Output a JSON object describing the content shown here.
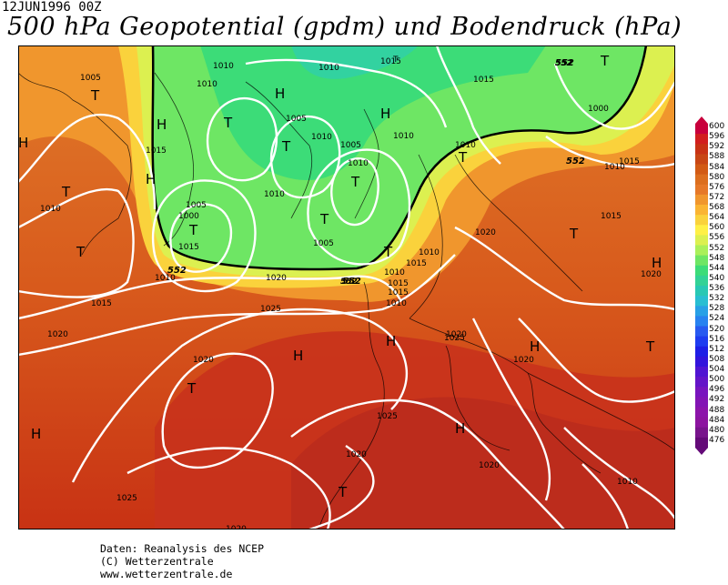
{
  "header": {
    "date": "12JUN1996 00Z",
    "title": "500 hPa Geopotential (gpdm) und Bodendruck (hPa)"
  },
  "credits": {
    "line1": "Daten: Reanalysis des NCEP",
    "line2": "(C) Wetterzentrale",
    "line3": "www.wetterzentrale.de"
  },
  "scale": {
    "unit": "gpdm",
    "labels": [
      "600",
      "596",
      "592",
      "588",
      "584",
      "580",
      "576",
      "572",
      "568",
      "564",
      "560",
      "556",
      "552",
      "548",
      "544",
      "540",
      "536",
      "532",
      "528",
      "524",
      "520",
      "516",
      "512",
      "508",
      "504",
      "500",
      "496",
      "492",
      "488",
      "484",
      "480",
      "476"
    ],
    "colors": [
      "#c8003c",
      "#d21e1e",
      "#c83214",
      "#c84614",
      "#d25a14",
      "#dc6e1e",
      "#e67828",
      "#f0962d",
      "#fab432",
      "#fad23c",
      "#fff046",
      "#dcf050",
      "#aaf05a",
      "#6ee664",
      "#3cdc78",
      "#32d296",
      "#28c8b4",
      "#28bed2",
      "#28a0e6",
      "#2882f0",
      "#285af0",
      "#1e3cf0",
      "#1e1ee6",
      "#3214dc",
      "#5014d2",
      "#6414c8",
      "#7814be",
      "#8214b4",
      "#8c14aa",
      "#8c14a0",
      "#78148c",
      "#640a78"
    ]
  },
  "isobar_labels": [
    "1005",
    "1010",
    "1010",
    "1010",
    "1005",
    "1010",
    "1010",
    "1010",
    "1015",
    "552",
    "T",
    "1000",
    "1015",
    "1010",
    "1005",
    "1010",
    "1015",
    "1015",
    "1010",
    "1000",
    "1005",
    "1010",
    "1005",
    "1015",
    "1020",
    "1020",
    "1015",
    "1020",
    "1025",
    "1020",
    "1025",
    "1025",
    "1020",
    "1020",
    "1020",
    "1025",
    "1010",
    "1010",
    "1015",
    "1020",
    "1020",
    "1020",
    "1015",
    "1010",
    "552",
    "1015",
    "1010",
    "1015",
    "1010"
  ],
  "pressure_centers": [
    "T",
    "H",
    "T",
    "T",
    "T",
    "H",
    "T",
    "T",
    "T",
    "T",
    "H",
    "T",
    "T",
    "H",
    "H",
    "T",
    "H",
    "T",
    "H",
    "H",
    "H",
    "T",
    "T",
    "T",
    "H",
    "H"
  ],
  "contour_labels": [
    "552",
    "552",
    "552",
    "552",
    "552"
  ]
}
